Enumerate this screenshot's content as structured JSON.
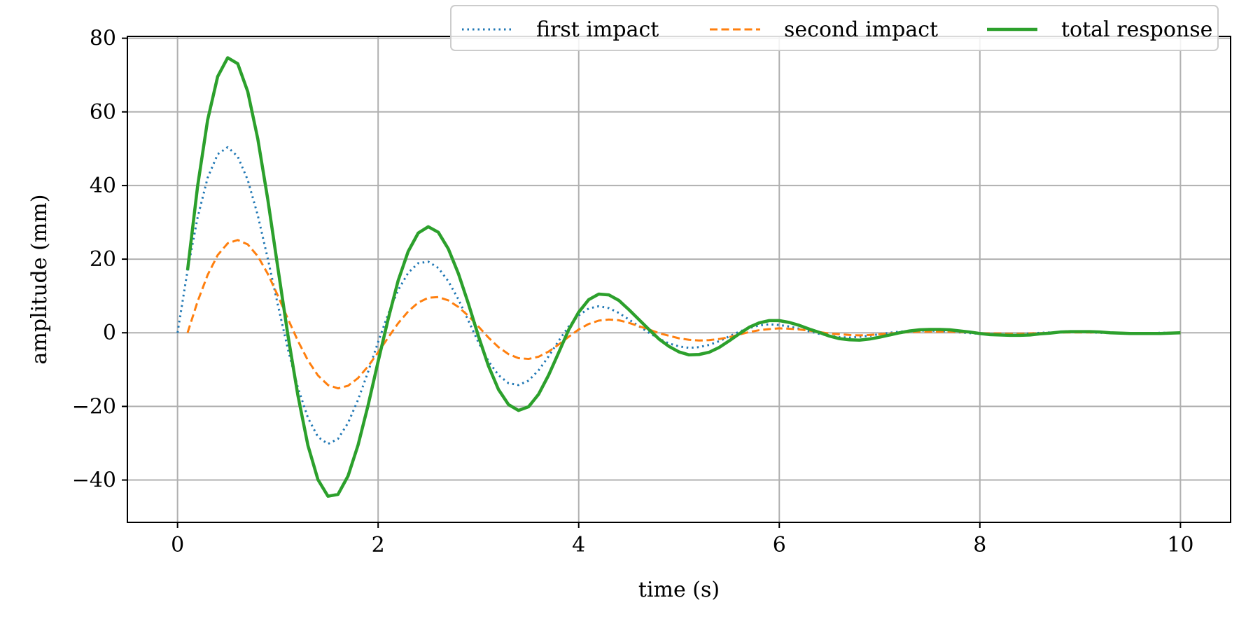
{
  "chart_data": {
    "type": "line",
    "title": "",
    "xlabel": "time (s)",
    "ylabel": "amplitude (mm)",
    "xlim": [
      -0.5,
      10.5
    ],
    "ylim": [
      -51.5,
      80.5
    ],
    "xticks": [
      0,
      2,
      4,
      6,
      8,
      10
    ],
    "yticks": [
      -40,
      -20,
      0,
      20,
      40,
      60,
      80
    ],
    "xtick_labels": [
      "0",
      "2",
      "4",
      "6",
      "8",
      "10"
    ],
    "ytick_labels": [
      "−40",
      "−20",
      "0",
      "20",
      "40",
      "60",
      "80"
    ],
    "grid": true,
    "legend_placement": "top-right",
    "series": [
      {
        "name": "first impact",
        "color": "#1f77b4",
        "style": "dotted",
        "x": [
          0.0,
          0.1,
          0.2,
          0.3,
          0.4,
          0.5,
          0.6,
          0.7,
          0.8,
          0.9,
          1.0,
          1.1,
          1.2,
          1.3,
          1.4,
          1.5,
          1.6,
          1.7,
          1.8,
          1.9,
          2.0,
          2.1,
          2.2,
          2.3,
          2.4,
          2.5,
          2.6,
          2.7,
          2.8,
          2.9,
          3.0,
          3.1,
          3.2,
          3.3,
          3.4,
          3.5,
          3.6,
          3.7,
          3.8,
          3.9,
          4.0,
          4.1,
          4.2,
          4.3,
          4.4,
          4.5,
          4.6,
          4.7,
          4.8,
          4.9,
          5.0,
          5.1,
          5.2,
          5.3,
          5.4,
          5.5,
          5.6,
          5.7,
          5.8,
          5.9,
          6.0,
          6.1,
          6.2,
          6.3,
          6.4,
          6.5,
          6.6,
          6.7,
          6.8,
          6.9,
          7.0,
          7.1,
          7.2,
          7.3,
          7.4,
          7.5,
          7.6,
          7.7,
          7.8,
          7.9,
          8.0,
          8.1,
          8.2,
          8.3,
          8.4,
          8.5,
          8.6,
          8.7,
          8.8,
          8.9,
          9.0,
          9.1,
          9.2,
          9.3,
          9.4,
          9.5,
          9.6,
          9.7,
          9.8,
          9.9,
          10.0
        ],
        "y": [
          0.0,
          17.0,
          31.3,
          42.1,
          48.5,
          50.4,
          47.9,
          41.5,
          31.9,
          20.1,
          7.6,
          -4.4,
          -14.9,
          -23.1,
          -28.3,
          -30.2,
          -28.8,
          -24.5,
          -18.2,
          -10.6,
          -2.5,
          5.1,
          11.6,
          16.3,
          18.9,
          19.3,
          17.6,
          14.0,
          9.1,
          3.3,
          -2.6,
          -7.7,
          -11.5,
          -13.7,
          -14.2,
          -13.0,
          -10.2,
          -6.4,
          -2.2,
          1.7,
          4.7,
          6.6,
          7.2,
          6.7,
          5.4,
          3.6,
          1.8,
          0.0,
          -1.6,
          -2.9,
          -3.7,
          -4.1,
          -3.9,
          -3.3,
          -2.3,
          -1.0,
          0.3,
          1.3,
          2.0,
          2.3,
          2.1,
          1.7,
          1.1,
          0.4,
          -0.3,
          -0.8,
          -1.2,
          -1.3,
          -1.1,
          -0.8,
          -0.4,
          -0.0,
          0.3,
          0.5,
          0.6,
          0.6,
          0.5,
          0.3,
          0.1,
          -0.1,
          -0.3,
          -0.4,
          -0.5,
          -0.5,
          -0.4,
          -0.2,
          -0.0,
          0.1,
          0.2,
          0.2,
          0.2,
          0.1,
          0.0,
          -0.1,
          -0.1,
          -0.1,
          -0.1,
          -0.1,
          -0.0,
          0.0,
          0.0
        ]
      },
      {
        "name": "second impact",
        "color": "#ff7f0e",
        "style": "dashed",
        "x": [
          0.1,
          0.2,
          0.3,
          0.4,
          0.5,
          0.6,
          0.7,
          0.8,
          0.9,
          1.0,
          1.1,
          1.2,
          1.3,
          1.4,
          1.5,
          1.6,
          1.7,
          1.8,
          1.9,
          2.0,
          2.1,
          2.2,
          2.3,
          2.4,
          2.5,
          2.6,
          2.7,
          2.8,
          2.9,
          3.0,
          3.1,
          3.2,
          3.3,
          3.4,
          3.5,
          3.6,
          3.7,
          3.8,
          3.9,
          4.0,
          4.1,
          4.2,
          4.3,
          4.4,
          4.5,
          4.6,
          4.7,
          4.8,
          4.9,
          5.0,
          5.1,
          5.2,
          5.3,
          5.4,
          5.5,
          5.6,
          5.7,
          5.8,
          5.9,
          6.0,
          6.1,
          6.2,
          6.3,
          6.4,
          6.5,
          6.6,
          6.7,
          6.8,
          6.9,
          7.0,
          7.1,
          7.2,
          7.3,
          7.4,
          7.5,
          7.6,
          7.7,
          7.8,
          7.9,
          8.0,
          8.1,
          8.2,
          8.3,
          8.4,
          8.5,
          8.6,
          8.7,
          8.8,
          8.9,
          9.0,
          9.1,
          9.2,
          9.3,
          9.4,
          9.5,
          9.6,
          9.7,
          9.8,
          9.9,
          10.0
        ],
        "y": [
          0.0,
          8.5,
          15.7,
          21.1,
          24.3,
          25.2,
          24.0,
          20.8,
          16.0,
          10.1,
          3.8,
          -2.2,
          -7.5,
          -11.6,
          -14.2,
          -15.1,
          -14.4,
          -12.3,
          -9.1,
          -5.3,
          -1.3,
          2.6,
          5.8,
          8.2,
          9.5,
          9.7,
          8.8,
          7.0,
          4.6,
          1.7,
          -1.3,
          -3.9,
          -5.8,
          -6.9,
          -7.1,
          -6.5,
          -5.1,
          -3.2,
          -1.1,
          0.9,
          2.4,
          3.3,
          3.6,
          3.4,
          2.7,
          1.8,
          0.9,
          -0.1,
          -0.8,
          -1.5,
          -1.9,
          -2.1,
          -2.0,
          -1.7,
          -1.2,
          -0.5,
          0.2,
          0.7,
          1.0,
          1.2,
          1.1,
          0.9,
          0.6,
          0.2,
          -0.2,
          -0.4,
          -0.6,
          -0.7,
          -0.6,
          -0.4,
          -0.2,
          -0.0,
          0.2,
          0.3,
          0.3,
          0.3,
          0.3,
          0.2,
          0.1,
          -0.1,
          -0.2,
          -0.2,
          -0.3,
          -0.3,
          -0.2,
          -0.1,
          -0.0,
          0.1,
          0.1,
          0.1,
          0.1,
          0.1,
          0.0,
          -0.0,
          -0.1,
          -0.1,
          -0.1,
          -0.1,
          -0.0,
          0.0
        ]
      },
      {
        "name": "total response",
        "color": "#2ca02c",
        "style": "solid",
        "x": [
          0.1,
          0.2,
          0.3,
          0.4,
          0.5,
          0.6,
          0.7,
          0.8,
          0.9,
          1.0,
          1.1,
          1.2,
          1.3,
          1.4,
          1.5,
          1.6,
          1.7,
          1.8,
          1.9,
          2.0,
          2.1,
          2.2,
          2.3,
          2.4,
          2.5,
          2.6,
          2.7,
          2.8,
          2.9,
          3.0,
          3.1,
          3.2,
          3.3,
          3.4,
          3.5,
          3.6,
          3.7,
          3.8,
          3.9,
          4.0,
          4.1,
          4.2,
          4.3,
          4.4,
          4.5,
          4.6,
          4.7,
          4.8,
          4.9,
          5.0,
          5.1,
          5.2,
          5.3,
          5.4,
          5.5,
          5.6,
          5.7,
          5.8,
          5.9,
          6.0,
          6.1,
          6.2,
          6.3,
          6.4,
          6.5,
          6.6,
          6.7,
          6.8,
          6.9,
          7.0,
          7.1,
          7.2,
          7.3,
          7.4,
          7.5,
          7.6,
          7.7,
          7.8,
          7.9,
          8.0,
          8.1,
          8.2,
          8.3,
          8.4,
          8.5,
          8.6,
          8.7,
          8.8,
          8.9,
          9.0,
          9.1,
          9.2,
          9.3,
          9.4,
          9.5,
          9.6,
          9.7,
          9.8,
          9.9,
          10.0
        ],
        "y": [
          17.0,
          39.8,
          57.8,
          69.6,
          74.7,
          73.1,
          65.5,
          52.7,
          36.2,
          17.7,
          -0.6,
          -17.0,
          -30.6,
          -39.9,
          -44.4,
          -43.9,
          -38.9,
          -30.5,
          -19.7,
          -7.8,
          3.7,
          14.2,
          22.1,
          27.1,
          28.8,
          27.3,
          22.8,
          16.1,
          7.9,
          -0.9,
          -9.0,
          -15.4,
          -19.5,
          -21.1,
          -20.1,
          -16.7,
          -11.5,
          -5.4,
          0.8,
          5.6,
          9.0,
          10.5,
          10.3,
          8.8,
          6.3,
          3.6,
          0.9,
          -1.7,
          -3.7,
          -5.2,
          -6.0,
          -5.9,
          -5.3,
          -4.0,
          -2.2,
          -0.3,
          1.5,
          2.7,
          3.3,
          3.3,
          2.8,
          2.0,
          1.0,
          0.1,
          -0.9,
          -1.6,
          -1.9,
          -2.0,
          -1.7,
          -1.2,
          -0.6,
          0.0,
          0.5,
          0.8,
          0.9,
          0.9,
          0.8,
          0.5,
          0.2,
          -0.2,
          -0.5,
          -0.6,
          -0.7,
          -0.7,
          -0.6,
          -0.3,
          -0.1,
          0.2,
          0.3,
          0.3,
          0.3,
          0.2,
          0.0,
          -0.1,
          -0.2,
          -0.2,
          -0.2,
          -0.2,
          -0.1,
          0.0
        ]
      }
    ]
  }
}
